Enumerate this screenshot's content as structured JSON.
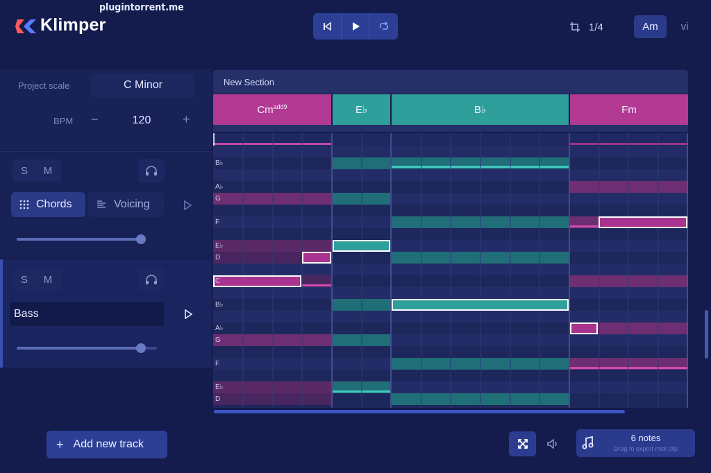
{
  "app": {
    "name": "Klimper",
    "watermark": "plugintorrent.me"
  },
  "header": {
    "grid_value": "1/4",
    "key_primary": "Am",
    "key_secondary": "vi"
  },
  "project": {
    "scale_label": "Project scale",
    "scale_value": "C Minor",
    "bpm_label": "BPM",
    "bpm_value": "120",
    "minus": "−",
    "plus": "+"
  },
  "tracks": [
    {
      "solo": "S",
      "mute": "M",
      "tab_active": "Chords",
      "tab_inactive": "Voicing",
      "volume": 0.9
    },
    {
      "solo": "S",
      "mute": "M",
      "name": "Bass",
      "volume": 0.88
    }
  ],
  "section": {
    "name": "New Section"
  },
  "chords": [
    {
      "root": "Cm",
      "ext": "add9",
      "color": "#b23a93"
    },
    {
      "root": "E♭",
      "ext": "",
      "color": "#2f9f9b"
    },
    {
      "root": "B♭",
      "ext": "",
      "color": "#2f9f9b"
    },
    {
      "root": "Fm",
      "ext": "",
      "color": "#b23a93"
    }
  ],
  "roll_labels": [
    {
      "key": "bb1",
      "text": "B♭"
    },
    {
      "key": "ab1",
      "text": "A♭"
    },
    {
      "key": "g1",
      "text": "G"
    },
    {
      "key": "f1",
      "text": "F"
    },
    {
      "key": "eb1",
      "text": "E♭"
    },
    {
      "key": "d1",
      "text": "D"
    },
    {
      "key": "c1",
      "text": "C"
    },
    {
      "key": "bb2",
      "text": "B♭"
    },
    {
      "key": "ab2",
      "text": "A♭"
    },
    {
      "key": "g2",
      "text": "G"
    },
    {
      "key": "f2",
      "text": "F"
    },
    {
      "key": "eb2",
      "text": "E♭"
    },
    {
      "key": "d2",
      "text": "D"
    }
  ],
  "footer": {
    "add_track": "Add new track",
    "notes_count": "6 notes",
    "export_hint": "Drag to export midi clip"
  },
  "colors": {
    "magenta": "#b23a93",
    "teal": "#2f9f9b",
    "bg": "#141c4e"
  }
}
